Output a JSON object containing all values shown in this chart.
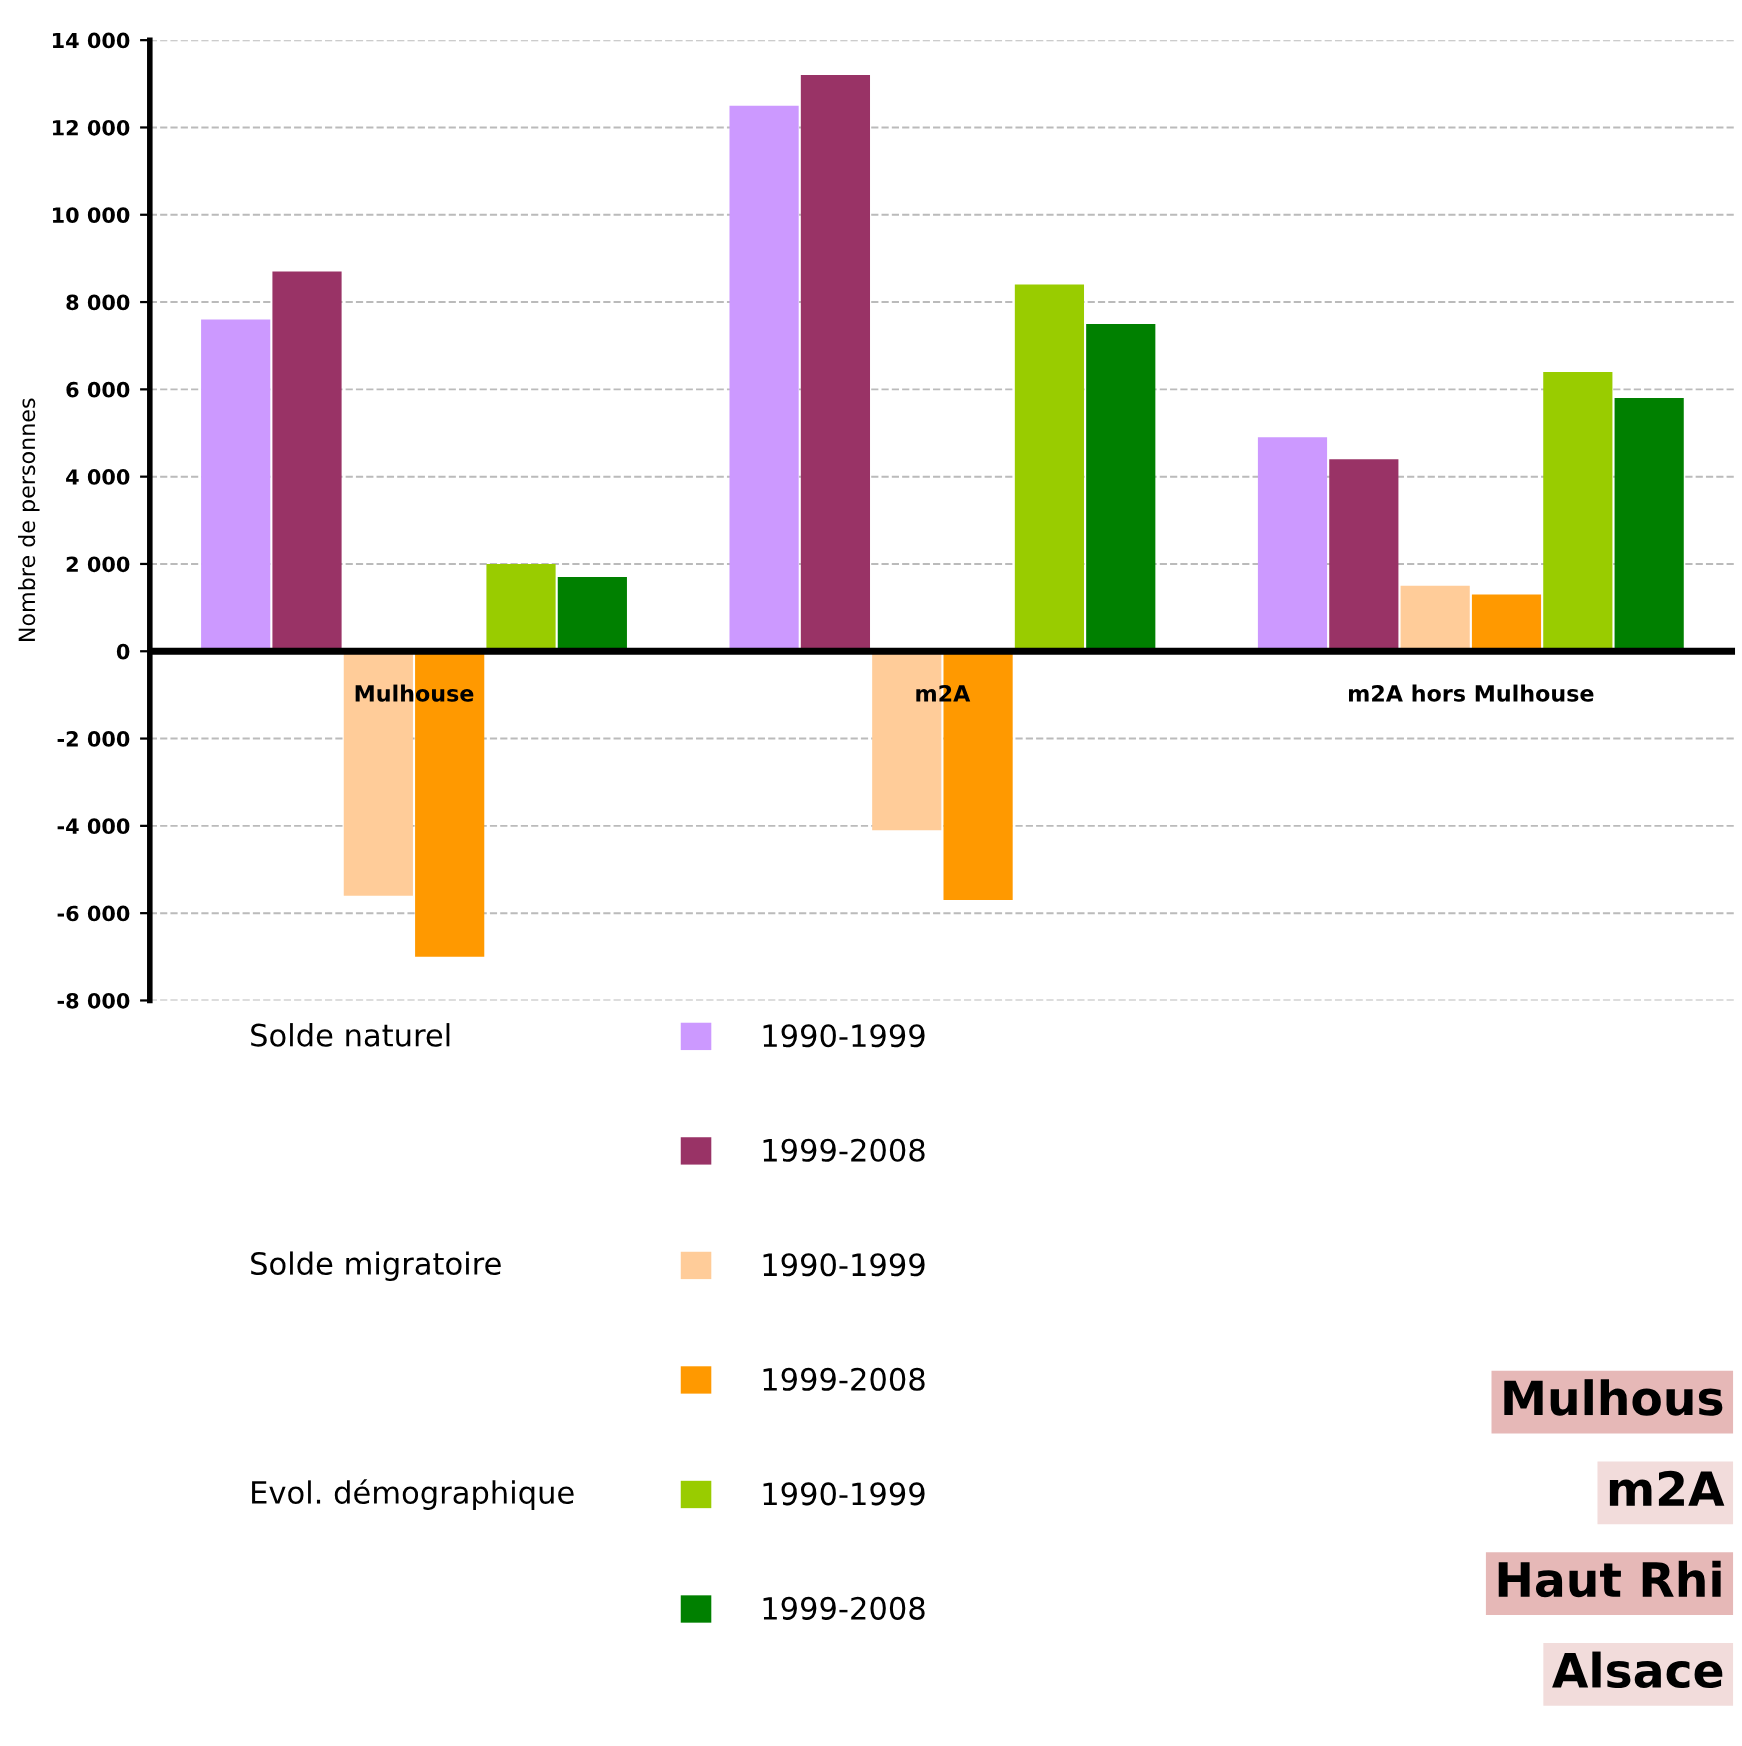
{
  "chart_data": {
    "type": "bar",
    "ylabel": "Nombre de personnes",
    "categories": [
      "Mulhouse",
      "m2A",
      "m2A hors Mulhouse"
    ],
    "series": [
      {
        "name": "1990-1999",
        "color": "#cc99ff",
        "values": [
          7600,
          12500,
          4900
        ]
      },
      {
        "name": "1999-2008",
        "color": "#993366",
        "values": [
          8700,
          13200,
          4400
        ]
      },
      {
        "name": "1990-1999",
        "color": "#ffcc99",
        "values": [
          -5600,
          -4100,
          1500
        ]
      },
      {
        "name": "1999-2008",
        "color": "#ff9900",
        "values": [
          -7000,
          -5700,
          1300
        ]
      },
      {
        "name": "1990-1999",
        "color": "#99cc00",
        "values": [
          2000,
          8400,
          6400
        ]
      },
      {
        "name": "1999-2008",
        "color": "#008000",
        "values": [
          1700,
          7500,
          5800
        ]
      }
    ],
    "ylim": [
      -8000,
      14000
    ],
    "yticks": [
      {
        "value": -8000,
        "label": "-8 000"
      },
      {
        "value": -6000,
        "label": "-6 000"
      },
      {
        "value": -4000,
        "label": "-4 000"
      },
      {
        "value": -2000,
        "label": "-2 000"
      },
      0,
      {
        "value": 2000,
        "label": "2 000"
      },
      {
        "value": 4000,
        "label": "4 000"
      },
      {
        "value": 6000,
        "label": "6 000"
      },
      {
        "value": 8000,
        "label": "8 000"
      },
      {
        "value": 10000,
        "label": "10 000"
      },
      {
        "value": 12000,
        "label": "12 000"
      },
      {
        "value": 14000,
        "label": "14 000"
      }
    ],
    "grid": "y",
    "legend": "bottom",
    "annotations": [
      "Solde naturel",
      "Solde migratoire",
      "Evol. démographique",
      "Mulhous",
      "m2A",
      "Haut Rhi",
      "Alsace"
    ]
  }
}
